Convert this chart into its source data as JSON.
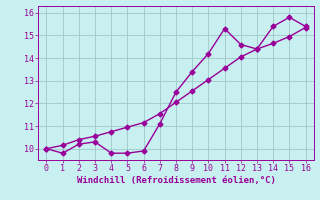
{
  "x": [
    0,
    1,
    2,
    3,
    4,
    5,
    6,
    7,
    8,
    9,
    10,
    11,
    12,
    13,
    14,
    15,
    16
  ],
  "line1": [
    10.0,
    9.8,
    10.2,
    10.3,
    9.8,
    9.8,
    9.9,
    11.1,
    12.5,
    13.4,
    14.2,
    15.3,
    14.6,
    14.4,
    15.4,
    15.8,
    15.4
  ],
  "line2": [
    10.0,
    10.15,
    10.4,
    10.55,
    10.75,
    10.95,
    11.15,
    11.55,
    12.05,
    12.55,
    13.05,
    13.55,
    14.05,
    14.4,
    14.65,
    14.95,
    15.35
  ],
  "line_color": "#990099",
  "bg_color": "#c8f0f0",
  "grid_color": "#a0c8c8",
  "xlabel": "Windchill (Refroidissement éolien,°C)",
  "ylim": [
    9.5,
    16.3
  ],
  "xlim": [
    -0.5,
    16.5
  ],
  "yticks": [
    10,
    11,
    12,
    13,
    14,
    15,
    16
  ],
  "xticks": [
    0,
    1,
    2,
    3,
    4,
    5,
    6,
    7,
    8,
    9,
    10,
    11,
    12,
    13,
    14,
    15,
    16
  ],
  "marker": "D",
  "markersize": 2.5,
  "linewidth": 1.0,
  "xlabel_fontsize": 6.5,
  "tick_fontsize": 6.0
}
